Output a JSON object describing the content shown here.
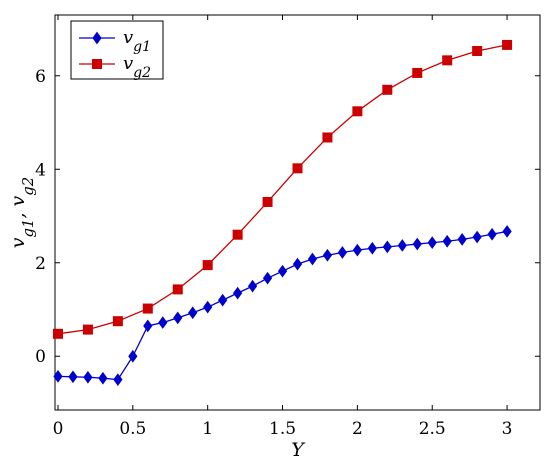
{
  "chart_data": {
    "type": "line",
    "xlabel": "Y",
    "ylabel": "v_{g1}, v_{g2}",
    "xlim": [
      -0.02,
      3.22
    ],
    "ylim": [
      -1.15,
      7.3
    ],
    "xticks": [
      0,
      0.5,
      1,
      1.5,
      2,
      2.5,
      3
    ],
    "xtick_labels": [
      "0",
      "0.5",
      "1",
      "1.5",
      "2",
      "2.5",
      "3"
    ],
    "yticks": [
      0,
      2,
      4,
      6
    ],
    "ytick_labels": [
      "0",
      "2",
      "4",
      "6"
    ],
    "grid": false,
    "legend_position": "top-left",
    "series": [
      {
        "name": "v_{g1}",
        "color": "#0000cc",
        "marker": "diamond",
        "x": [
          0,
          0.1,
          0.2,
          0.3,
          0.4,
          0.5,
          0.6,
          0.7,
          0.8,
          0.9,
          1.0,
          1.1,
          1.2,
          1.3,
          1.4,
          1.5,
          1.6,
          1.7,
          1.8,
          1.9,
          2.0,
          2.1,
          2.2,
          2.3,
          2.4,
          2.5,
          2.6,
          2.7,
          2.8,
          2.9,
          3.0
        ],
        "y": [
          -0.43,
          -0.44,
          -0.45,
          -0.47,
          -0.5,
          0.0,
          0.65,
          0.72,
          0.82,
          0.93,
          1.05,
          1.2,
          1.35,
          1.5,
          1.67,
          1.82,
          1.97,
          2.08,
          2.16,
          2.22,
          2.27,
          2.31,
          2.34,
          2.37,
          2.4,
          2.43,
          2.46,
          2.5,
          2.55,
          2.61,
          2.67
        ]
      },
      {
        "name": "v_{g2}",
        "color": "#cc0000",
        "marker": "square",
        "x": [
          0,
          0.2,
          0.4,
          0.6,
          0.8,
          1.0,
          1.2,
          1.4,
          1.6,
          1.8,
          2.0,
          2.2,
          2.4,
          2.6,
          2.8,
          3.0
        ],
        "y": [
          0.48,
          0.57,
          0.75,
          1.02,
          1.43,
          1.95,
          2.6,
          3.3,
          4.02,
          4.68,
          5.24,
          5.7,
          6.06,
          6.33,
          6.53,
          6.66
        ]
      }
    ]
  }
}
